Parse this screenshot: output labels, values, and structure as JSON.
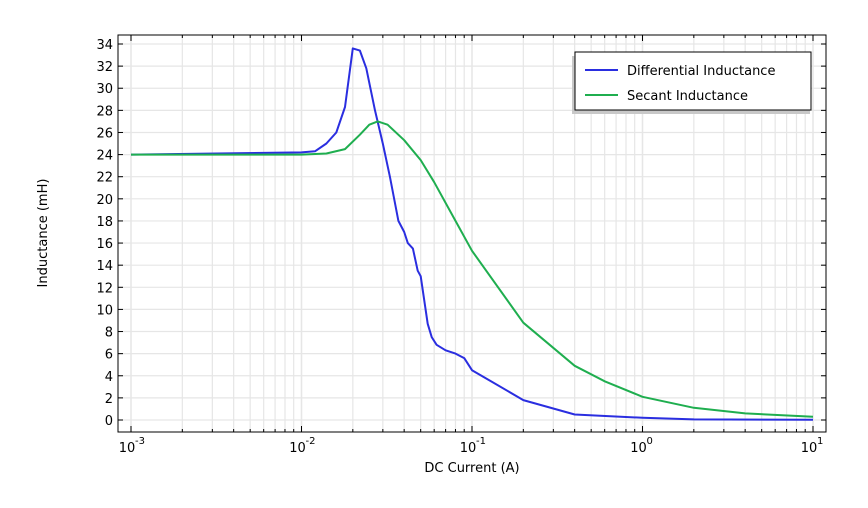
{
  "chart_data": {
    "type": "line",
    "title": "",
    "xlabel": "DC Current (A)",
    "ylabel": "Inductance (mH)",
    "xscale": "log",
    "xlim": [
      0.001,
      10
    ],
    "ylim": [
      -1,
      35
    ],
    "grid": true,
    "legend_position": "top-right",
    "x_ticks": [
      {
        "base": "10",
        "exp": "-3",
        "value": 0.001
      },
      {
        "base": "10",
        "exp": "-2",
        "value": 0.01
      },
      {
        "base": "10",
        "exp": "-1",
        "value": 0.1
      },
      {
        "base": "10",
        "exp": "0",
        "value": 1
      },
      {
        "base": "10",
        "exp": "1",
        "value": 10
      }
    ],
    "y_ticks": [
      "0",
      "2",
      "4",
      "6",
      "8",
      "10",
      "12",
      "14",
      "16",
      "18",
      "20",
      "22",
      "24",
      "26",
      "28",
      "30",
      "32",
      "34"
    ],
    "series": [
      {
        "name": "Differential Inductance",
        "color": "#2a2ee0",
        "x": [
          0.001,
          0.01,
          0.012,
          0.014,
          0.016,
          0.018,
          0.02,
          0.022,
          0.024,
          0.027,
          0.03,
          0.033,
          0.037,
          0.04,
          0.042,
          0.045,
          0.048,
          0.05,
          0.055,
          0.058,
          0.062,
          0.07,
          0.08,
          0.09,
          0.1,
          0.2,
          0.4,
          1,
          2,
          10
        ],
        "y": [
          24.0,
          24.2,
          24.3,
          25,
          26,
          28.3,
          33.6,
          33.4,
          31.8,
          28,
          25,
          22,
          18,
          17,
          16,
          15.5,
          13.5,
          13,
          8.7,
          7.5,
          6.8,
          6.3,
          6.0,
          5.6,
          4.5,
          1.8,
          0.5,
          0.2,
          0.05,
          0.02
        ]
      },
      {
        "name": "Secant Inductance",
        "color": "#1fae4f",
        "x": [
          0.001,
          0.01,
          0.014,
          0.018,
          0.022,
          0.025,
          0.028,
          0.032,
          0.04,
          0.05,
          0.06,
          0.08,
          0.1,
          0.2,
          0.4,
          0.6,
          1,
          2,
          4,
          10
        ],
        "y": [
          24.0,
          24.0,
          24.1,
          24.5,
          25.8,
          26.7,
          27,
          26.7,
          25.3,
          23.5,
          21.5,
          18,
          15.3,
          8.8,
          4.9,
          3.5,
          2.1,
          1.1,
          0.6,
          0.3
        ]
      }
    ]
  }
}
